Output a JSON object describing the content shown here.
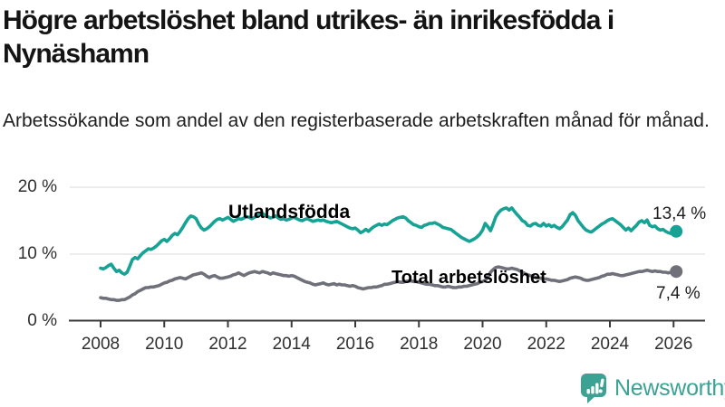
{
  "header": {
    "title": "Högre arbetslöshet bland utrikes- än inrikesfödda i Nynäshamn",
    "subtitle": "Arbetssökande som andel av den registerbaserade arbetskraften månad för månad."
  },
  "footer": {
    "brand": "Newsworthy"
  },
  "colors": {
    "series0": "#16a294",
    "series1": "#70707a",
    "grid": "#d8d8d8",
    "axis": "#3a3a3a",
    "logo": "#3ba294"
  },
  "chart_data": {
    "type": "line",
    "title": "Högre arbetslöshet bland utrikes- än inrikesfödda i Nynäshamn",
    "subtitle": "Arbetssökande som andel av den registerbaserade arbetskraften månad för månad.",
    "x_unit": "month",
    "x_start_year": 2008,
    "x_end": "2026-02",
    "xlim": [
      2008,
      2026.17
    ],
    "ylim": [
      0,
      20
    ],
    "grid": "horizontal",
    "x_ticks": [
      "2008",
      "2010",
      "2012",
      "2014",
      "2016",
      "2018",
      "2020",
      "2022",
      "2024",
      "2026"
    ],
    "y_ticks": [
      {
        "value": 0,
        "label": "0 %"
      },
      {
        "value": 10,
        "label": "10 %"
      },
      {
        "value": 20,
        "label": "20 %"
      }
    ],
    "series": [
      {
        "name": "Utlandsfödda",
        "color": "#16a294",
        "end_label": "13,4 %",
        "end_value": 13.4,
        "values": [
          7.9,
          7.8,
          8.0,
          8.3,
          8.5,
          7.9,
          7.4,
          7.6,
          7.2,
          7.0,
          7.3,
          8.2,
          9.2,
          9.5,
          9.3,
          9.8,
          10.2,
          10.5,
          10.8,
          10.7,
          10.9,
          11.2,
          11.6,
          12.0,
          12.2,
          11.9,
          12.3,
          12.8,
          13.1,
          12.9,
          13.4,
          14.0,
          14.7,
          15.3,
          15.7,
          15.6,
          15.3,
          14.5,
          13.9,
          13.6,
          13.8,
          14.1,
          14.5,
          14.9,
          15.2,
          15.3,
          15.1,
          15.3,
          15.5,
          15.2,
          14.9,
          15.1,
          15.3,
          15.2,
          15.4,
          15.6,
          15.5,
          15.3,
          15.5,
          15.7,
          15.9,
          16.1,
          15.8,
          15.6,
          15.4,
          15.5,
          15.7,
          15.4,
          15.2,
          15.3,
          15.1,
          15.2,
          15.4,
          15.5,
          15.3,
          15.1,
          15.0,
          15.2,
          15.3,
          15.1,
          14.9,
          15.0,
          15.1,
          15.0,
          15.1,
          14.9,
          14.8,
          14.7,
          14.8,
          14.9,
          14.7,
          14.5,
          14.3,
          14.1,
          13.9,
          13.8,
          13.9,
          13.6,
          13.2,
          13.4,
          13.7,
          13.4,
          13.8,
          14.1,
          14.3,
          14.5,
          14.3,
          14.5,
          14.4,
          14.7,
          15.0,
          15.2,
          15.4,
          15.5,
          15.6,
          15.4,
          15.0,
          14.7,
          14.4,
          14.3,
          14.1,
          14.0,
          14.3,
          14.4,
          14.6,
          14.6,
          14.7,
          14.5,
          14.3,
          14.0,
          13.9,
          13.8,
          13.7,
          13.4,
          13.1,
          12.8,
          12.5,
          12.3,
          12.1,
          11.9,
          12.1,
          12.3,
          12.6,
          13.0,
          13.6,
          14.6,
          14.1,
          13.5,
          14.5,
          15.6,
          16.2,
          16.6,
          16.8,
          16.9,
          16.6,
          16.9,
          16.4,
          15.9,
          15.5,
          15.0,
          14.8,
          14.3,
          14.2,
          14.5,
          14.6,
          14.3,
          14.2,
          14.6,
          14.2,
          14.4,
          14.1,
          14.3,
          14.0,
          13.8,
          14.1,
          14.6,
          15.1,
          15.9,
          16.2,
          15.8,
          15.0,
          14.5,
          14.0,
          13.6,
          13.4,
          13.3,
          13.6,
          13.9,
          14.2,
          14.5,
          14.7,
          15.0,
          15.2,
          15.3,
          15.0,
          14.7,
          14.4,
          14.0,
          13.6,
          13.9,
          13.5,
          13.9,
          14.3,
          14.8,
          15.0,
          14.7,
          15.1,
          14.3,
          14.1,
          14.2,
          13.8,
          13.6,
          13.7,
          13.4,
          13.2,
          13.1,
          13.2,
          13.4
        ]
      },
      {
        "name": "Total arbetslöshet",
        "color": "#70707a",
        "end_label": "7,4 %",
        "end_value": 7.4,
        "values": [
          3.5,
          3.4,
          3.4,
          3.3,
          3.2,
          3.2,
          3.1,
          3.1,
          3.2,
          3.2,
          3.4,
          3.6,
          3.9,
          4.1,
          4.4,
          4.6,
          4.8,
          5.0,
          5.0,
          5.1,
          5.1,
          5.2,
          5.3,
          5.5,
          5.7,
          5.8,
          6.0,
          6.1,
          6.3,
          6.4,
          6.5,
          6.4,
          6.3,
          6.5,
          6.7,
          6.9,
          7.0,
          7.1,
          7.2,
          7.0,
          6.7,
          6.5,
          6.7,
          6.8,
          6.6,
          6.4,
          6.4,
          6.5,
          6.6,
          6.7,
          6.9,
          7.0,
          7.2,
          7.0,
          6.8,
          7.0,
          7.2,
          7.3,
          7.4,
          7.3,
          7.2,
          7.4,
          7.3,
          7.2,
          7.0,
          7.2,
          7.1,
          7.0,
          6.9,
          6.8,
          6.8,
          6.7,
          6.8,
          6.7,
          6.5,
          6.3,
          6.1,
          5.9,
          5.8,
          5.7,
          5.5,
          5.4,
          5.5,
          5.6,
          5.7,
          5.5,
          5.4,
          5.5,
          5.6,
          5.4,
          5.5,
          5.4,
          5.4,
          5.3,
          5.2,
          5.3,
          5.2,
          5.0,
          4.9,
          4.8,
          4.9,
          5.0,
          5.0,
          5.1,
          5.1,
          5.2,
          5.3,
          5.5,
          5.5,
          5.6,
          5.7,
          5.8,
          5.9,
          5.8,
          5.8,
          5.9,
          6.0,
          6.0,
          5.9,
          5.9,
          5.8,
          5.7,
          5.6,
          5.5,
          5.5,
          5.4,
          5.3,
          5.3,
          5.2,
          5.1,
          5.1,
          5.2,
          5.1,
          5.0,
          5.0,
          5.1,
          5.1,
          5.2,
          5.2,
          5.3,
          5.4,
          5.5,
          5.6,
          5.8,
          5.9,
          6.1,
          6.6,
          7.3,
          7.7,
          8.0,
          8.1,
          8.0,
          7.9,
          7.8,
          7.8,
          7.9,
          7.8,
          7.7,
          7.5,
          7.3,
          7.1,
          6.9,
          6.8,
          6.7,
          6.5,
          6.4,
          6.4,
          6.3,
          6.3,
          6.2,
          6.1,
          6.1,
          6.0,
          5.9,
          6.0,
          6.1,
          6.2,
          6.4,
          6.5,
          6.6,
          6.5,
          6.4,
          6.2,
          6.1,
          6.1,
          6.2,
          6.3,
          6.4,
          6.5,
          6.7,
          6.8,
          7.0,
          7.0,
          7.1,
          7.0,
          6.9,
          6.8,
          6.8,
          6.9,
          7.0,
          7.1,
          7.2,
          7.3,
          7.4,
          7.4,
          7.5,
          7.6,
          7.5,
          7.4,
          7.5,
          7.4,
          7.4,
          7.3,
          7.3,
          7.2,
          7.3,
          7.3,
          7.4
        ]
      }
    ]
  }
}
